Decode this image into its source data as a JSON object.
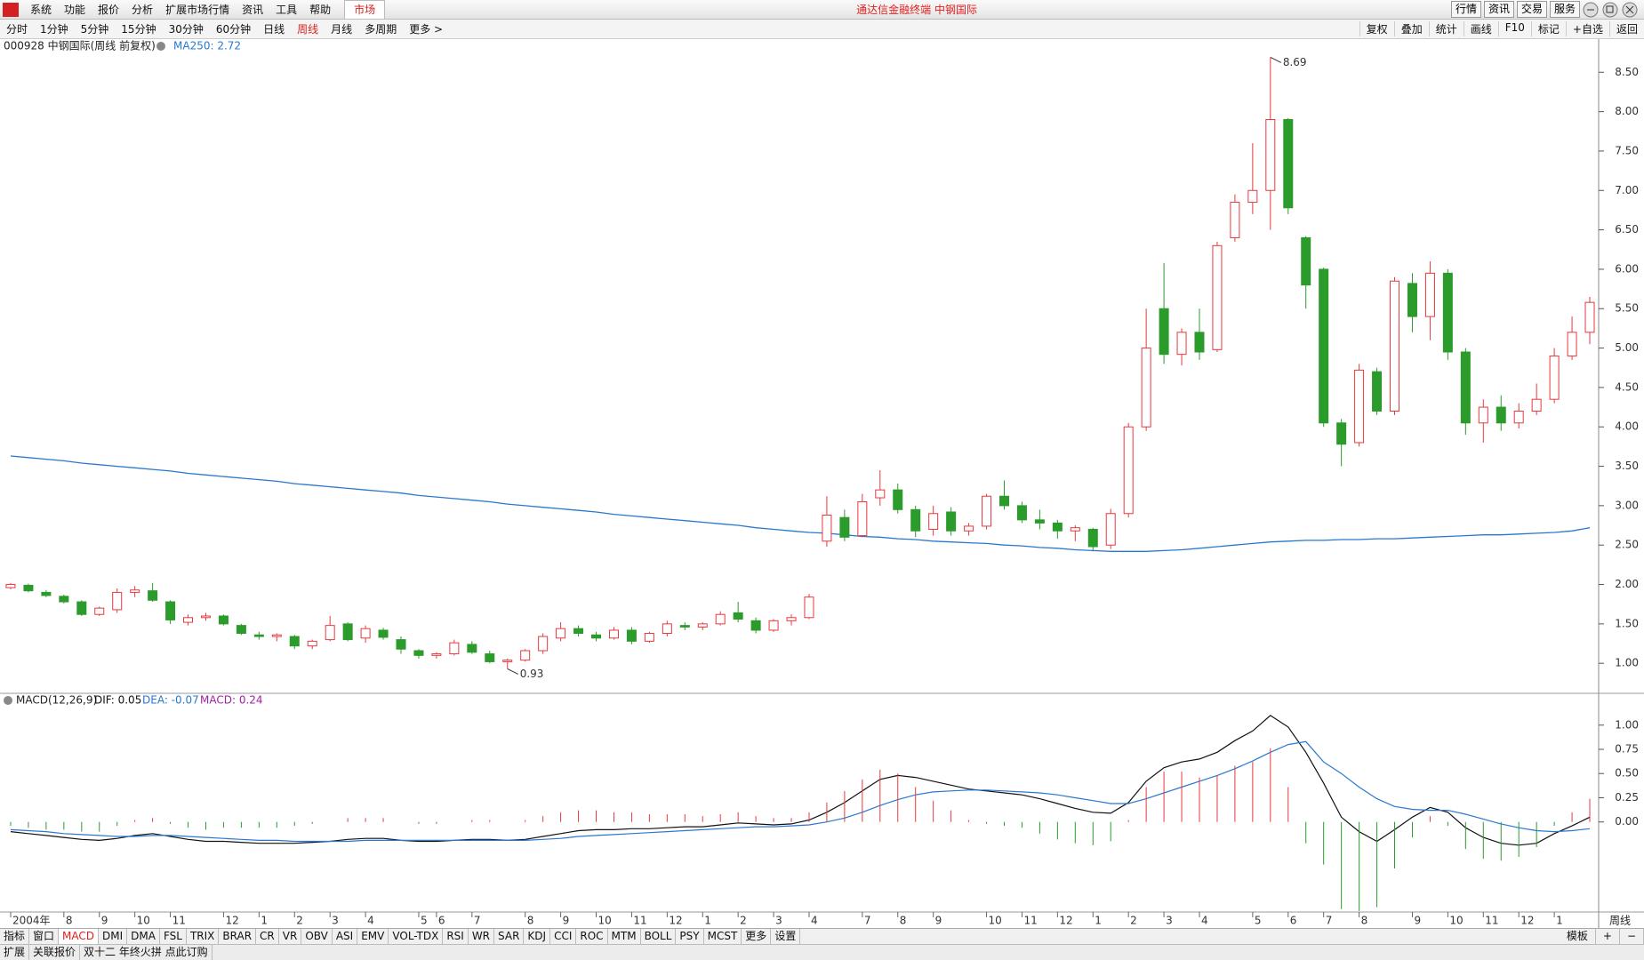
{
  "ui": {
    "menu": [
      "系统",
      "功能",
      "报价",
      "分析",
      "扩展市场行情",
      "资讯",
      "工具",
      "帮助"
    ],
    "market_tab": "市场",
    "app_title": "通达信金融终端 中钢国际",
    "top_buttons": [
      "行情",
      "资讯",
      "交易",
      "服务"
    ],
    "periods": [
      "分时",
      "1分钟",
      "5分钟",
      "15分钟",
      "30分钟",
      "60分钟",
      "日线",
      "周线",
      "月线",
      "多周期",
      "更多 >"
    ],
    "period_active": 7,
    "tools": [
      "复权",
      "叠加",
      "统计",
      "画线",
      "F10",
      "标记",
      "+自选",
      "返回"
    ],
    "indicator_tabs": [
      "指标",
      "窗口",
      "MACD",
      "DMI",
      "DMA",
      "FSL",
      "TRIX",
      "BRAR",
      "CR",
      "VR",
      "OBV",
      "ASI",
      "EMV",
      "VOL-TDX",
      "RSI",
      "WR",
      "SAR",
      "KDJ",
      "CCI",
      "ROC",
      "MTM",
      "BOLL",
      "PSY",
      "MCST",
      "更多",
      "设置"
    ],
    "indicator_active": 2,
    "template_buttons": [
      "模板",
      "+",
      "−"
    ],
    "status": [
      "扩展",
      "关联报价",
      "双十二 年终火拼 点此订购"
    ],
    "axis_period": "周线"
  },
  "chart_data": [
    {
      "type": "candlestick",
      "title": "000928 中钢国际(周线 前复权)",
      "categories": [
        "2004年",
        null,
        null,
        "8",
        null,
        "9",
        null,
        "10",
        null,
        "11",
        null,
        null,
        "12",
        null,
        "1",
        null,
        "2",
        null,
        "3",
        null,
        "4",
        null,
        null,
        "5",
        "6",
        null,
        "7",
        null,
        null,
        "8",
        null,
        "9",
        null,
        "10",
        null,
        "11",
        null,
        "12",
        null,
        "1",
        null,
        "2",
        null,
        "3",
        null,
        "4",
        null,
        null,
        "7",
        null,
        "8",
        null,
        "9",
        null,
        null,
        "10",
        null,
        "11",
        null,
        "12",
        null,
        "1",
        null,
        "2",
        null,
        "3",
        null,
        "4",
        null,
        null,
        "5",
        null,
        "6",
        null,
        "7",
        null,
        "8",
        null,
        null,
        "9",
        null,
        "10",
        null,
        "11",
        null,
        "12",
        null,
        "1",
        null,
        null
      ],
      "ohlc": [
        [
          1.96,
          2.02,
          1.94,
          2.0
        ],
        [
          1.99,
          2.01,
          1.9,
          1.92
        ],
        [
          1.9,
          1.93,
          1.84,
          1.86
        ],
        [
          1.85,
          1.87,
          1.76,
          1.78
        ],
        [
          1.78,
          1.8,
          1.6,
          1.62
        ],
        [
          1.62,
          1.72,
          1.6,
          1.7
        ],
        [
          1.68,
          1.95,
          1.64,
          1.9
        ],
        [
          1.9,
          1.98,
          1.84,
          1.93
        ],
        [
          1.92,
          2.02,
          1.78,
          1.8
        ],
        [
          1.78,
          1.8,
          1.5,
          1.55
        ],
        [
          1.52,
          1.62,
          1.48,
          1.58
        ],
        [
          1.58,
          1.64,
          1.54,
          1.6
        ],
        [
          1.6,
          1.62,
          1.48,
          1.5
        ],
        [
          1.48,
          1.5,
          1.36,
          1.38
        ],
        [
          1.36,
          1.4,
          1.3,
          1.34
        ],
        [
          1.34,
          1.38,
          1.28,
          1.36
        ],
        [
          1.34,
          1.36,
          1.18,
          1.22
        ],
        [
          1.22,
          1.3,
          1.18,
          1.28
        ],
        [
          1.3,
          1.6,
          1.28,
          1.48
        ],
        [
          1.5,
          1.52,
          1.28,
          1.3
        ],
        [
          1.32,
          1.48,
          1.26,
          1.44
        ],
        [
          1.42,
          1.45,
          1.3,
          1.33
        ],
        [
          1.3,
          1.34,
          1.12,
          1.18
        ],
        [
          1.16,
          1.18,
          1.06,
          1.1
        ],
        [
          1.1,
          1.14,
          1.06,
          1.12
        ],
        [
          1.12,
          1.3,
          1.1,
          1.26
        ],
        [
          1.24,
          1.28,
          1.12,
          1.14
        ],
        [
          1.12,
          1.16,
          1.0,
          1.02
        ],
        [
          1.02,
          1.06,
          0.93,
          1.04
        ],
        [
          1.04,
          1.18,
          1.02,
          1.16
        ],
        [
          1.16,
          1.38,
          1.12,
          1.34
        ],
        [
          1.32,
          1.52,
          1.28,
          1.44
        ],
        [
          1.44,
          1.48,
          1.34,
          1.38
        ],
        [
          1.36,
          1.4,
          1.28,
          1.32
        ],
        [
          1.32,
          1.46,
          1.3,
          1.42
        ],
        [
          1.42,
          1.46,
          1.24,
          1.28
        ],
        [
          1.28,
          1.4,
          1.26,
          1.38
        ],
        [
          1.38,
          1.54,
          1.34,
          1.5
        ],
        [
          1.48,
          1.52,
          1.42,
          1.46
        ],
        [
          1.46,
          1.52,
          1.42,
          1.5
        ],
        [
          1.5,
          1.66,
          1.48,
          1.62
        ],
        [
          1.64,
          1.78,
          1.52,
          1.56
        ],
        [
          1.54,
          1.58,
          1.38,
          1.42
        ],
        [
          1.42,
          1.56,
          1.4,
          1.54
        ],
        [
          1.54,
          1.62,
          1.48,
          1.58
        ],
        [
          1.58,
          1.88,
          1.56,
          1.84
        ],
        [
          2.55,
          3.12,
          2.48,
          2.88
        ],
        [
          2.85,
          2.95,
          2.55,
          2.6
        ],
        [
          2.62,
          3.15,
          2.6,
          3.05
        ],
        [
          3.1,
          3.45,
          3.0,
          3.2
        ],
        [
          3.2,
          3.28,
          2.9,
          2.95
        ],
        [
          2.95,
          3.0,
          2.6,
          2.68
        ],
        [
          2.7,
          3.0,
          2.62,
          2.9
        ],
        [
          2.92,
          2.98,
          2.62,
          2.68
        ],
        [
          2.68,
          2.78,
          2.62,
          2.74
        ],
        [
          2.74,
          3.15,
          2.7,
          3.12
        ],
        [
          3.12,
          3.32,
          2.95,
          3.0
        ],
        [
          3.0,
          3.05,
          2.78,
          2.82
        ],
        [
          2.82,
          2.95,
          2.7,
          2.78
        ],
        [
          2.78,
          2.82,
          2.58,
          2.68
        ],
        [
          2.68,
          2.75,
          2.55,
          2.72
        ],
        [
          2.7,
          2.72,
          2.42,
          2.48
        ],
        [
          2.5,
          2.96,
          2.45,
          2.9
        ],
        [
          2.9,
          4.05,
          2.85,
          4.0
        ],
        [
          4.0,
          5.5,
          3.95,
          5.0
        ],
        [
          5.5,
          6.08,
          4.8,
          4.92
        ],
        [
          4.92,
          5.25,
          4.78,
          5.2
        ],
        [
          5.2,
          5.5,
          4.85,
          4.95
        ],
        [
          4.98,
          6.35,
          4.95,
          6.3
        ],
        [
          6.4,
          6.95,
          6.35,
          6.85
        ],
        [
          6.85,
          7.6,
          6.7,
          7.0
        ],
        [
          7.0,
          8.69,
          6.5,
          7.9
        ],
        [
          7.9,
          7.92,
          6.7,
          6.78
        ],
        [
          6.4,
          6.42,
          5.5,
          5.8
        ],
        [
          6.0,
          6.02,
          4.0,
          4.05
        ],
        [
          4.05,
          4.1,
          3.5,
          3.78
        ],
        [
          3.8,
          4.8,
          3.75,
          4.72
        ],
        [
          4.7,
          4.75,
          4.15,
          4.2
        ],
        [
          4.2,
          5.9,
          4.15,
          5.85
        ],
        [
          5.82,
          5.95,
          5.2,
          5.4
        ],
        [
          5.4,
          6.1,
          5.1,
          5.95
        ],
        [
          5.95,
          6.0,
          4.85,
          4.95
        ],
        [
          4.95,
          5.0,
          3.9,
          4.05
        ],
        [
          4.05,
          4.35,
          3.8,
          4.25
        ],
        [
          4.25,
          4.4,
          3.95,
          4.05
        ],
        [
          4.05,
          4.3,
          3.98,
          4.2
        ],
        [
          4.2,
          4.55,
          4.15,
          4.35
        ],
        [
          4.35,
          5.0,
          4.3,
          4.9
        ],
        [
          4.9,
          5.4,
          4.85,
          5.2
        ],
        [
          5.2,
          5.65,
          5.05,
          5.58
        ]
      ],
      "up_color": "#e8383d",
      "down_color": "#2b9b2b",
      "series": [
        {
          "name": "MA250: 2.72",
          "color": "#2878d0",
          "values": [
            3.63,
            3.61,
            3.59,
            3.57,
            3.54,
            3.52,
            3.5,
            3.48,
            3.46,
            3.44,
            3.41,
            3.39,
            3.37,
            3.35,
            3.33,
            3.31,
            3.28,
            3.26,
            3.24,
            3.22,
            3.2,
            3.18,
            3.16,
            3.13,
            3.11,
            3.09,
            3.07,
            3.05,
            3.02,
            3.0,
            2.98,
            2.96,
            2.94,
            2.92,
            2.89,
            2.87,
            2.85,
            2.83,
            2.81,
            2.79,
            2.77,
            2.75,
            2.72,
            2.7,
            2.68,
            2.66,
            2.65,
            2.63,
            2.61,
            2.6,
            2.58,
            2.57,
            2.55,
            2.54,
            2.53,
            2.52,
            2.5,
            2.49,
            2.47,
            2.46,
            2.44,
            2.43,
            2.42,
            2.42,
            2.42,
            2.43,
            2.44,
            2.46,
            2.48,
            2.5,
            2.52,
            2.54,
            2.55,
            2.56,
            2.56,
            2.57,
            2.57,
            2.58,
            2.58,
            2.59,
            2.6,
            2.61,
            2.62,
            2.63,
            2.63,
            2.64,
            2.65,
            2.66,
            2.68,
            2.72
          ]
        }
      ],
      "high_label": "8.69",
      "low_label": "0.93",
      "ylim": [
        0.63,
        8.74
      ],
      "yticks": [
        {
          "value": 1,
          "label": "1.00"
        },
        {
          "value": 1.5,
          "label": "1.50"
        },
        {
          "value": 2,
          "label": "2.00"
        },
        {
          "value": 2.5,
          "label": "2.50"
        },
        {
          "value": 3,
          "label": "3.00"
        },
        {
          "value": 3.5,
          "label": "3.50"
        },
        {
          "value": 4,
          "label": "4.00"
        },
        {
          "value": 4.5,
          "label": "4.50"
        },
        {
          "value": 5,
          "label": "5.00"
        },
        {
          "value": 5.5,
          "label": "5.50"
        },
        {
          "value": 6,
          "label": "6.00"
        },
        {
          "value": 6.5,
          "label": "6.50"
        },
        {
          "value": 7,
          "label": "7.00"
        },
        {
          "value": 7.5,
          "label": "7.50"
        },
        {
          "value": 8,
          "label": "8.00"
        },
        {
          "value": 8.5,
          "label": "8.50"
        }
      ]
    },
    {
      "type": "macd",
      "title": "MACD(12,26,9)",
      "series": [
        {
          "name": "DIF: 0.05",
          "color": "#111111",
          "values": [
            -0.1,
            -0.12,
            -0.14,
            -0.16,
            -0.18,
            -0.19,
            -0.17,
            -0.14,
            -0.12,
            -0.15,
            -0.18,
            -0.2,
            -0.2,
            -0.21,
            -0.22,
            -0.22,
            -0.22,
            -0.21,
            -0.2,
            -0.18,
            -0.17,
            -0.17,
            -0.19,
            -0.2,
            -0.2,
            -0.19,
            -0.18,
            -0.18,
            -0.19,
            -0.18,
            -0.15,
            -0.12,
            -0.09,
            -0.08,
            -0.08,
            -0.07,
            -0.07,
            -0.06,
            -0.05,
            -0.05,
            -0.03,
            -0.01,
            -0.02,
            -0.03,
            -0.02,
            0.02,
            0.1,
            0.2,
            0.32,
            0.44,
            0.48,
            0.46,
            0.42,
            0.38,
            0.34,
            0.32,
            0.3,
            0.28,
            0.24,
            0.19,
            0.14,
            0.1,
            0.09,
            0.2,
            0.42,
            0.56,
            0.62,
            0.65,
            0.72,
            0.84,
            0.94,
            1.1,
            0.98,
            0.72,
            0.4,
            0.05,
            -0.1,
            -0.2,
            -0.08,
            0.05,
            0.15,
            0.1,
            -0.06,
            -0.16,
            -0.22,
            -0.24,
            -0.22,
            -0.12,
            -0.04,
            0.05
          ]
        },
        {
          "name": "DEA: -0.07",
          "color": "#2878d0",
          "values": [
            -0.08,
            -0.09,
            -0.1,
            -0.12,
            -0.13,
            -0.14,
            -0.15,
            -0.15,
            -0.14,
            -0.14,
            -0.15,
            -0.16,
            -0.17,
            -0.18,
            -0.19,
            -0.19,
            -0.2,
            -0.2,
            -0.2,
            -0.2,
            -0.19,
            -0.19,
            -0.19,
            -0.19,
            -0.19,
            -0.19,
            -0.19,
            -0.19,
            -0.19,
            -0.19,
            -0.18,
            -0.17,
            -0.15,
            -0.14,
            -0.13,
            -0.12,
            -0.11,
            -0.1,
            -0.09,
            -0.08,
            -0.07,
            -0.06,
            -0.05,
            -0.05,
            -0.04,
            -0.03,
            0.0,
            0.04,
            0.1,
            0.17,
            0.23,
            0.28,
            0.31,
            0.32,
            0.33,
            0.33,
            0.32,
            0.31,
            0.3,
            0.28,
            0.25,
            0.22,
            0.19,
            0.19,
            0.24,
            0.3,
            0.36,
            0.42,
            0.48,
            0.55,
            0.63,
            0.72,
            0.8,
            0.83,
            0.62,
            0.5,
            0.36,
            0.24,
            0.16,
            0.13,
            0.12,
            0.12,
            0.08,
            0.03,
            -0.02,
            -0.06,
            -0.09,
            -0.1,
            -0.09,
            -0.07
          ]
        },
        {
          "name": "MACD: 0.24",
          "type": "bar",
          "color": "#a020a0",
          "up_color": "#e8383d",
          "down_color": "#2b9b2b",
          "values": [
            -0.04,
            -0.06,
            -0.08,
            -0.08,
            -0.1,
            -0.1,
            -0.04,
            0.02,
            0.04,
            -0.02,
            -0.06,
            -0.08,
            -0.06,
            -0.06,
            -0.06,
            -0.06,
            -0.04,
            -0.02,
            0.0,
            0.04,
            0.04,
            0.04,
            0.0,
            -0.02,
            -0.02,
            0.0,
            0.02,
            0.02,
            0.0,
            0.02,
            0.06,
            0.1,
            0.12,
            0.12,
            0.1,
            0.1,
            0.08,
            0.08,
            0.08,
            0.06,
            0.08,
            0.1,
            0.06,
            0.04,
            0.04,
            0.1,
            0.2,
            0.32,
            0.44,
            0.54,
            0.5,
            0.36,
            0.22,
            0.12,
            0.02,
            -0.02,
            -0.04,
            -0.06,
            -0.12,
            -0.18,
            -0.22,
            -0.24,
            -0.2,
            0.02,
            0.36,
            0.52,
            0.52,
            0.46,
            0.48,
            0.58,
            0.62,
            0.76,
            0.36,
            -0.22,
            -0.44,
            -0.9,
            -0.92,
            -0.88,
            -0.48,
            -0.16,
            0.06,
            -0.04,
            -0.28,
            -0.38,
            -0.4,
            -0.36,
            -0.26,
            -0.04,
            0.1,
            0.24
          ]
        }
      ],
      "ylim": [
        -0.93,
        1.31
      ],
      "yticks": [
        {
          "value": 0,
          "label": "0.00"
        },
        {
          "value": 0.25,
          "label": "0.25"
        },
        {
          "value": 0.5,
          "label": "0.50"
        },
        {
          "value": 0.75,
          "label": "0.75"
        },
        {
          "value": 1,
          "label": "1.00"
        }
      ]
    }
  ]
}
